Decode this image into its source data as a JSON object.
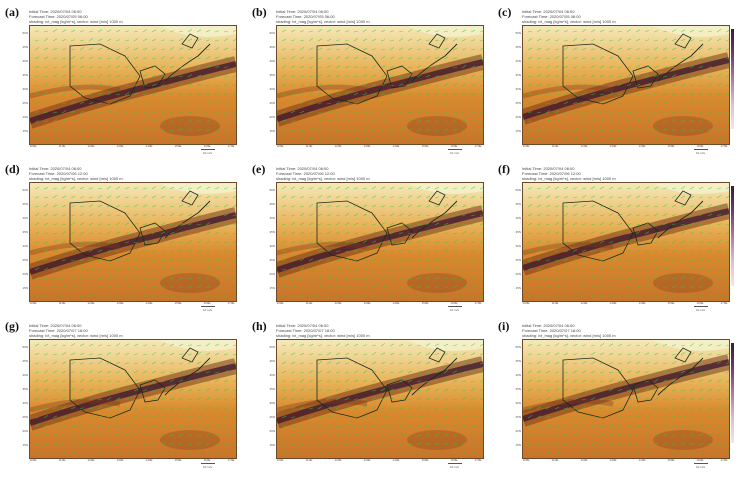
{
  "panels": [
    {
      "label": "(a)",
      "init": "Initial Time: 2020/07/04 06:00",
      "forecast": "Forecast Time: 2020/07/05 06:00",
      "field": "shading: ivt_mag [kg/m*s], vector: wind [m/s] 1000 m"
    },
    {
      "label": "(b)",
      "init": "Initial Time: 2020/07/04 06:00",
      "forecast": "Forecast Time: 2020/07/05 06:00",
      "field": "shading: ivt_mag [kg/m*s], vector: wind [m/s] 1000 m"
    },
    {
      "label": "(c)",
      "init": "Initial Time: 2020/07/04 06:00",
      "forecast": "Forecast Time: 2020/07/05 06:00",
      "field": "shading: ivt_mag [kg/m*s], vector: wind [m/s] 1000 m"
    },
    {
      "label": "(d)",
      "init": "Initial Time: 2020/07/04 06:00",
      "forecast": "Forecast Time: 2020/07/06 12:00",
      "field": "shading: ivt_mag [kg/m*s], vector: wind [m/s] 1000 m"
    },
    {
      "label": "(e)",
      "init": "Initial Time: 2020/07/04 06:00",
      "forecast": "Forecast Time: 2020/07/06 12:00",
      "field": "shading: ivt_mag [kg/m*s], vector: wind [m/s] 1000 m"
    },
    {
      "label": "(f)",
      "init": "Initial Time: 2020/07/04 06:00",
      "forecast": "Forecast Time: 2020/07/06 12:00",
      "field": "shading: ivt_mag [kg/m*s], vector: wind [m/s] 1000 m"
    },
    {
      "label": "(g)",
      "init": "Initial Time: 2020/07/04 06:00",
      "forecast": "Forecast Time: 2020/07/07 18:00",
      "field": "shading: ivt_mag [kg/m*s], vector: wind [m/s] 1000 m"
    },
    {
      "label": "(h)",
      "init": "Initial Time: 2020/07/04 06:00",
      "forecast": "Forecast Time: 2020/07/07 18:00",
      "field": "shading: ivt_mag [kg/m*s], vector: wind [m/s] 1000 m"
    },
    {
      "label": "(i)",
      "init": "Initial Time: 2020/07/04 06:00",
      "forecast": "Forecast Time: 2020/07/07 18:00",
      "field": "shading: ivt_mag [kg/m*s], vector: wind [m/s] 1000 m"
    }
  ],
  "y_ticks": [
    "50N",
    "45N",
    "40N",
    "35N",
    "30N",
    "25N",
    "20N",
    "15N"
  ],
  "x_ticks": [
    "100E",
    "110E",
    "120E",
    "130E",
    "140E",
    "150E",
    "160E",
    "170E"
  ],
  "reference_vector_label": "10 m/s",
  "colors": {
    "ivt_low": "#f5e9b8",
    "ivt_mid": "#d98a2e",
    "ivt_high": "#7a3a1a",
    "ivt_max": "#3a1530",
    "wind_vector": "#2ecc40",
    "coastline": "#1d2a1d"
  }
}
